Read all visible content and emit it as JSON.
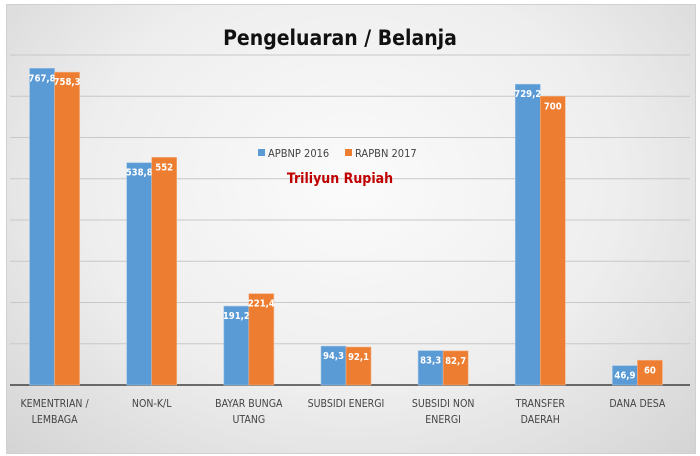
{
  "chart_data": {
    "type": "bar",
    "title": "Pengeluaran / Belanja",
    "subtitle": "Triliyun Rupiah",
    "categories": [
      [
        "KEMENTRIAN /",
        "LEMBAGA"
      ],
      [
        "NON-K/L"
      ],
      [
        "BAYAR BUNGA",
        "UTANG"
      ],
      [
        "SUBSIDI ENERGI"
      ],
      [
        "SUBSIDI NON",
        "ENERGI"
      ],
      [
        "TRANSFER",
        "DAERAH"
      ],
      [
        "DANA DESA"
      ]
    ],
    "series": [
      {
        "name": "APBNP 2016",
        "color": "#5b9bd5",
        "values": [
          767.8,
          538.8,
          191.2,
          94.3,
          83.3,
          729.2,
          46.9
        ],
        "labels": [
          "767,8",
          "538,8",
          "191,2",
          "94,3",
          "83,3",
          "729,2",
          "46,9"
        ]
      },
      {
        "name": "RAPBN 2017",
        "color": "#ed7d31",
        "values": [
          758.3,
          552,
          221.4,
          92.1,
          82.7,
          700,
          60
        ],
        "labels": [
          "758,3",
          "552",
          "221,4",
          "92,1",
          "82,7",
          "700",
          "60"
        ]
      }
    ],
    "ylim": [
      0,
      800
    ],
    "ytick_step": 100,
    "grid": true,
    "y_tick_labels_shown": false,
    "legend_placement": "top-center",
    "subtitle_color": "#c00000"
  }
}
